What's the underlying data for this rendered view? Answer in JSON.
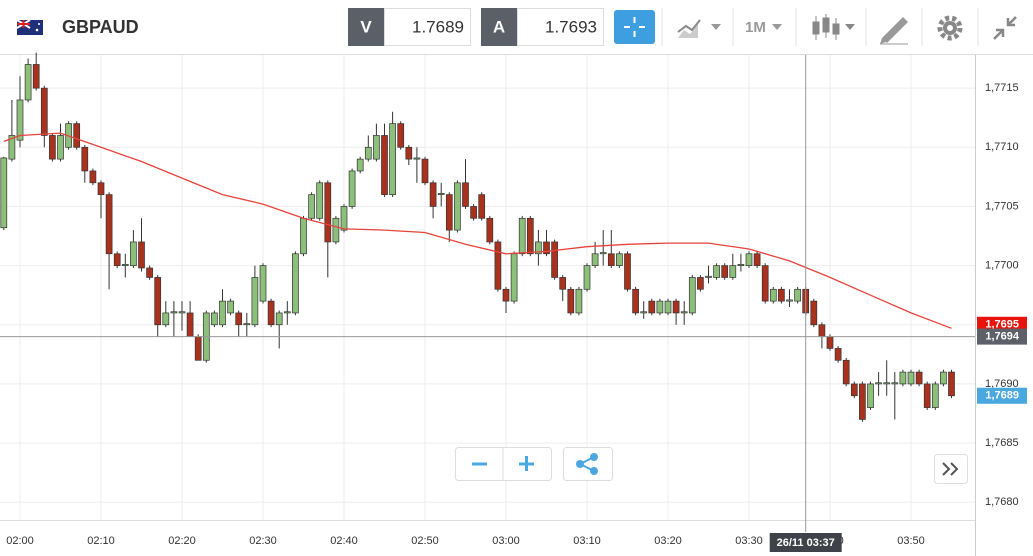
{
  "header": {
    "symbol": "GBPAUD",
    "bid": {
      "label": "V",
      "price": 1.7689
    },
    "ask": {
      "label": "A",
      "price": 1.7693
    },
    "timeframe": "1M"
  },
  "chart_data": {
    "type": "candlestick",
    "up_color": "#8cbf7a",
    "down_color": "#a8321e",
    "x": [
      "01:58",
      "01:59",
      "02:00",
      "02:01",
      "02:02",
      "02:03",
      "02:04",
      "02:05",
      "02:06",
      "02:07",
      "02:08",
      "02:09",
      "02:10",
      "02:11",
      "02:12",
      "02:13",
      "02:14",
      "02:15",
      "02:16",
      "02:17",
      "02:18",
      "02:19",
      "02:20",
      "02:21",
      "02:22",
      "02:23",
      "02:24",
      "02:25",
      "02:26",
      "02:27",
      "02:28",
      "02:29",
      "02:30",
      "02:31",
      "02:32",
      "02:33",
      "02:34",
      "02:35",
      "02:36",
      "02:37",
      "02:38",
      "02:39",
      "02:40",
      "02:41",
      "02:42",
      "02:43",
      "02:44",
      "02:45",
      "02:46",
      "02:47",
      "02:48",
      "02:49",
      "02:50",
      "02:51",
      "02:52",
      "02:53",
      "02:54",
      "02:55",
      "02:56",
      "02:57",
      "02:58",
      "02:59",
      "03:00",
      "03:01",
      "03:02",
      "03:03",
      "03:04",
      "03:05",
      "03:06",
      "03:07",
      "03:08",
      "03:09",
      "03:10",
      "03:11",
      "03:12",
      "03:13",
      "03:14",
      "03:15",
      "03:16",
      "03:17",
      "03:18",
      "03:19",
      "03:20",
      "03:21",
      "03:22",
      "03:23",
      "03:24",
      "03:25",
      "03:26",
      "03:27",
      "03:28",
      "03:29",
      "03:30",
      "03:31",
      "03:32",
      "03:33",
      "03:34",
      "03:35",
      "03:36",
      "03:37",
      "03:38",
      "03:39",
      "03:40",
      "03:41",
      "03:42",
      "03:43",
      "03:44",
      "03:45",
      "03:46",
      "03:47",
      "03:48",
      "03:49",
      "03:50",
      "03:51",
      "03:52",
      "03:53",
      "03:54",
      "03:55"
    ],
    "open": [
      1.77032,
      1.7709,
      1.77106,
      1.7714,
      1.7717,
      1.7715,
      1.7711,
      1.7709,
      1.771,
      1.7712,
      1.771,
      1.7708,
      1.7707,
      1.7706,
      1.7701,
      1.77,
      1.77,
      1.7702,
      1.76998,
      1.7699,
      1.7695,
      1.7696,
      1.7696,
      1.7696,
      1.7694,
      1.7692,
      1.7695,
      1.7695,
      1.7696,
      1.7696,
      1.7695,
      1.7695,
      1.7697,
      1.7697,
      1.7695,
      1.7696,
      1.7696,
      1.7701,
      1.7704,
      1.7704,
      1.7707,
      1.7702,
      1.7703,
      1.7705,
      1.7708,
      1.7709,
      1.7709,
      1.7711,
      1.7706,
      1.7712,
      1.771,
      1.7709,
      1.7709,
      1.7707,
      1.7706,
      1.7706,
      1.7703,
      1.7707,
      1.7705,
      1.7706,
      1.7704,
      1.7702,
      1.7698,
      1.7697,
      1.7701,
      1.7704,
      1.7701,
      1.7702,
      1.7702,
      1.7699,
      1.7698,
      1.7696,
      1.7698,
      1.77,
      1.7701,
      1.7701,
      1.77,
      1.7701,
      1.7698,
      1.7696,
      1.7697,
      1.7696,
      1.7696,
      1.7697,
      1.7696,
      1.7696,
      1.7699,
      1.7699,
      1.7699,
      1.77,
      1.7699,
      1.77,
      1.77,
      1.7701,
      1.77,
      1.7697,
      1.7698,
      1.7697,
      1.7697,
      1.7698,
      1.7697,
      1.7695,
      1.7694,
      1.7693,
      1.7692,
      1.769,
      1.769,
      1.7688,
      1.769,
      1.769,
      1.769,
      1.769,
      1.769,
      1.7691,
      1.769,
      1.7688,
      1.769,
      1.7691
    ],
    "high": [
      1.77092,
      1.7714,
      1.7716,
      1.77175,
      1.7718,
      1.77152,
      1.77112,
      1.7712,
      1.77122,
      1.77122,
      1.77102,
      1.77082,
      1.77072,
      1.77062,
      1.77012,
      1.7701,
      1.7703,
      1.7704,
      1.77,
      1.76992,
      1.7697,
      1.7697,
      1.7697,
      1.7697,
      1.76942,
      1.76962,
      1.76962,
      1.7698,
      1.76972,
      1.76962,
      1.7696,
      1.77,
      1.77002,
      1.76972,
      1.76962,
      1.7697,
      1.77012,
      1.77042,
      1.77062,
      1.77072,
      1.77072,
      1.77042,
      1.77052,
      1.77082,
      1.77092,
      1.7711,
      1.7712,
      1.7712,
      1.7713,
      1.77122,
      1.77102,
      1.771,
      1.77092,
      1.77072,
      1.7707,
      1.77062,
      1.77072,
      1.7709,
      1.77052,
      1.77062,
      1.77042,
      1.77022,
      1.76982,
      1.77012,
      1.77042,
      1.77042,
      1.7703,
      1.7703,
      1.77022,
      1.76992,
      1.76982,
      1.76982,
      1.77002,
      1.7702,
      1.7703,
      1.7703,
      1.77012,
      1.77012,
      1.76982,
      1.7697,
      1.76972,
      1.76972,
      1.76972,
      1.76972,
      1.7697,
      1.76992,
      1.76992,
      1.77,
      1.77002,
      1.77002,
      1.7701,
      1.7701,
      1.77012,
      1.77012,
      1.77002,
      1.76982,
      1.76982,
      1.7698,
      1.76982,
      1.76982,
      1.76972,
      1.76952,
      1.76942,
      1.76932,
      1.76922,
      1.76902,
      1.76902,
      1.76902,
      1.7691,
      1.7692,
      1.7691,
      1.76912,
      1.76912,
      1.76912,
      1.76902,
      1.76902,
      1.76912,
      1.76912
    ],
    "low": [
      1.7703,
      1.77088,
      1.771,
      1.77138,
      1.77148,
      1.771,
      1.77088,
      1.77088,
      1.77098,
      1.77098,
      1.7707,
      1.77068,
      1.7704,
      1.7698,
      1.76998,
      1.7699,
      1.76998,
      1.76995,
      1.76988,
      1.7694,
      1.76948,
      1.7694,
      1.76945,
      1.7694,
      1.7692,
      1.76918,
      1.76948,
      1.76948,
      1.76958,
      1.7694,
      1.7694,
      1.76948,
      1.76968,
      1.76948,
      1.7693,
      1.7695,
      1.76958,
      1.77008,
      1.77038,
      1.77038,
      1.7699,
      1.77018,
      1.77028,
      1.77048,
      1.77078,
      1.77088,
      1.77088,
      1.77058,
      1.77058,
      1.77098,
      1.77085,
      1.7707,
      1.77068,
      1.7704,
      1.7705,
      1.7702,
      1.77028,
      1.77048,
      1.77038,
      1.77038,
      1.77018,
      1.76978,
      1.7696,
      1.76968,
      1.77008,
      1.77008,
      1.77,
      1.77008,
      1.76988,
      1.7697,
      1.76958,
      1.76958,
      1.76978,
      1.76998,
      1.77,
      1.76998,
      1.76998,
      1.76978,
      1.76958,
      1.76955,
      1.76958,
      1.76958,
      1.76958,
      1.7695,
      1.7695,
      1.76958,
      1.76978,
      1.76985,
      1.76988,
      1.76988,
      1.76988,
      1.76995,
      1.76998,
      1.76998,
      1.76968,
      1.76968,
      1.76968,
      1.76965,
      1.76968,
      1.76958,
      1.76948,
      1.7693,
      1.76928,
      1.76918,
      1.76898,
      1.76888,
      1.76868,
      1.76878,
      1.7689,
      1.7689,
      1.7687,
      1.76898,
      1.76898,
      1.76898,
      1.76878,
      1.76878,
      1.76898,
      1.76888
    ],
    "close": [
      1.77091,
      1.7711,
      1.7714,
      1.7717,
      1.7715,
      1.7711,
      1.7709,
      1.7711,
      1.7712,
      1.771,
      1.7708,
      1.7707,
      1.7706,
      1.7701,
      1.77,
      1.77001,
      1.7702,
      1.76998,
      1.7699,
      1.7695,
      1.7696,
      1.76961,
      1.76961,
      1.7694,
      1.7692,
      1.7696,
      1.7696,
      1.7697,
      1.7697,
      1.7695,
      1.76951,
      1.7699,
      1.77,
      1.7695,
      1.7696,
      1.76961,
      1.7701,
      1.7704,
      1.7706,
      1.7707,
      1.7702,
      1.7704,
      1.7705,
      1.7708,
      1.7709,
      1.771,
      1.7711,
      1.7706,
      1.7712,
      1.771,
      1.7709,
      1.77091,
      1.7707,
      1.7705,
      1.77061,
      1.7703,
      1.7707,
      1.7705,
      1.7704,
      1.7704,
      1.7702,
      1.7698,
      1.7697,
      1.7701,
      1.7704,
      1.7701,
      1.7702,
      1.7701,
      1.7699,
      1.7698,
      1.7696,
      1.7698,
      1.77,
      1.7701,
      1.77011,
      1.77,
      1.7701,
      1.7698,
      1.7696,
      1.76961,
      1.7696,
      1.7697,
      1.7697,
      1.7696,
      1.76961,
      1.7699,
      1.7698,
      1.76991,
      1.77,
      1.7699,
      1.77,
      1.77001,
      1.7701,
      1.77,
      1.7697,
      1.7698,
      1.7697,
      1.76971,
      1.7698,
      1.7696,
      1.7695,
      1.7694,
      1.7693,
      1.7692,
      1.769,
      1.7689,
      1.7687,
      1.769,
      1.76901,
      1.76901,
      1.76901,
      1.7691,
      1.7691,
      1.769,
      1.7688,
      1.769,
      1.7691,
      1.7689
    ],
    "ma": {
      "color": "#e8433a",
      "x": [
        "01:58",
        "02:00",
        "02:05",
        "02:10",
        "02:15",
        "02:20",
        "02:25",
        "02:30",
        "02:35",
        "02:40",
        "02:45",
        "02:50",
        "02:55",
        "03:00",
        "03:05",
        "03:10",
        "03:15",
        "03:20",
        "03:25",
        "03:30",
        "03:35",
        "03:40",
        "03:45",
        "03:50",
        "03:55"
      ],
      "values": [
        1.77105,
        1.7711,
        1.77112,
        1.771,
        1.77088,
        1.77074,
        1.7706,
        1.77052,
        1.7704,
        1.77031,
        1.7703,
        1.77028,
        1.77018,
        1.7701,
        1.77012,
        1.77016,
        1.77018,
        1.77019,
        1.77019,
        1.77014,
        1.77004,
        1.7699,
        1.76975,
        1.7696,
        1.76947
      ]
    },
    "ylim": [
      1.76785,
      1.77178
    ],
    "yticks": [
      {
        "value": 1.768,
        "label": "1,7680"
      },
      {
        "value": 1.7685,
        "label": "1,7685"
      },
      {
        "value": 1.769,
        "label": "1,7690"
      },
      {
        "value": 1.7695,
        "label": "1,7695"
      },
      {
        "value": 1.77,
        "label": "1,7700"
      },
      {
        "value": 1.7705,
        "label": "1,7705"
      },
      {
        "value": 1.771,
        "label": "1,7710"
      },
      {
        "value": 1.7715,
        "label": "1,7715"
      }
    ],
    "xticks": [
      "02:00",
      "02:10",
      "02:20",
      "02:30",
      "02:40",
      "02:50",
      "03:00",
      "03:10",
      "03:20",
      "03:30",
      "03:40",
      "03:50"
    ],
    "grid": true,
    "crosshair": {
      "x": "03:37",
      "label": "26/11 03:37"
    },
    "price_tags": [
      {
        "value": 1.7695,
        "label": "1,7695",
        "color": "#e8140c"
      },
      {
        "value": 1.7694,
        "label": "1,7694",
        "color": "#5d6068",
        "line": true
      },
      {
        "value": 1.7689,
        "label": "1,7689",
        "color": "#4aa8e0"
      }
    ]
  }
}
